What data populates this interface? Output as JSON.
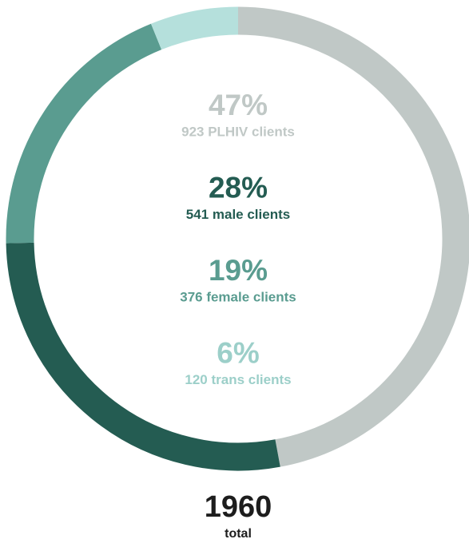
{
  "chart_data": {
    "type": "donut",
    "values": [
      923,
      541,
      376,
      120
    ],
    "value_labels": [
      "923 PLHIV clients",
      "541 male clients",
      "376 female clients",
      "120 trans clients"
    ],
    "percentages": [
      47,
      28,
      19,
      6
    ],
    "percentage_labels": [
      "47%",
      "28%",
      "19%",
      "6%"
    ],
    "colors": [
      "#c0c8c6",
      "#245c52",
      "#5a9c90",
      "#b5e0dc"
    ],
    "total": 1960,
    "total_label": "total"
  }
}
